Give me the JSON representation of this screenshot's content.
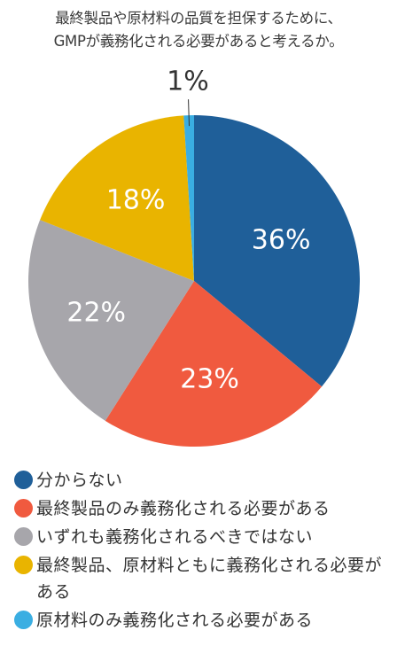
{
  "chart_data": {
    "type": "pie",
    "title_lines": [
      "最終製品や原材料の品質を担保するために、",
      "GMPが義務化される必要があると考えるか。"
    ],
    "slices": [
      {
        "label": "分からない",
        "value": 36,
        "display": "36%",
        "color": "#1f5f99",
        "text_color": "#ffffff"
      },
      {
        "label": "最終製品のみ義務化される必要がある",
        "value": 23,
        "display": "23%",
        "color": "#f05a3f",
        "text_color": "#ffffff"
      },
      {
        "label": "いずれも義務化されるべきではない",
        "value": 22,
        "display": "22%",
        "color": "#a7a6ab",
        "text_color": "#ffffff"
      },
      {
        "label": "最終製品、原材料ともに義務化される必要がある",
        "value": 18,
        "display": "18%",
        "color": "#e9b400",
        "text_color": "#ffffff"
      },
      {
        "label": "原材料のみ義務化される必要がある",
        "value": 1,
        "display": "1%",
        "color": "#3aaee2",
        "text_color": "#333333"
      }
    ],
    "legend_placement": "bottom"
  }
}
